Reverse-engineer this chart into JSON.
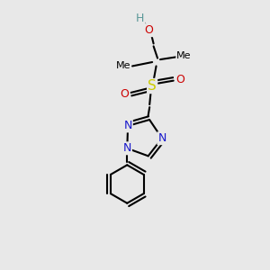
{
  "bg_color": "#e8e8e8",
  "atom_colors": {
    "C": "#000000",
    "H": "#5a9898",
    "O": "#cc0000",
    "N": "#1818cc",
    "S": "#cccc00"
  },
  "bond_color": "#000000",
  "bond_width": 1.5
}
